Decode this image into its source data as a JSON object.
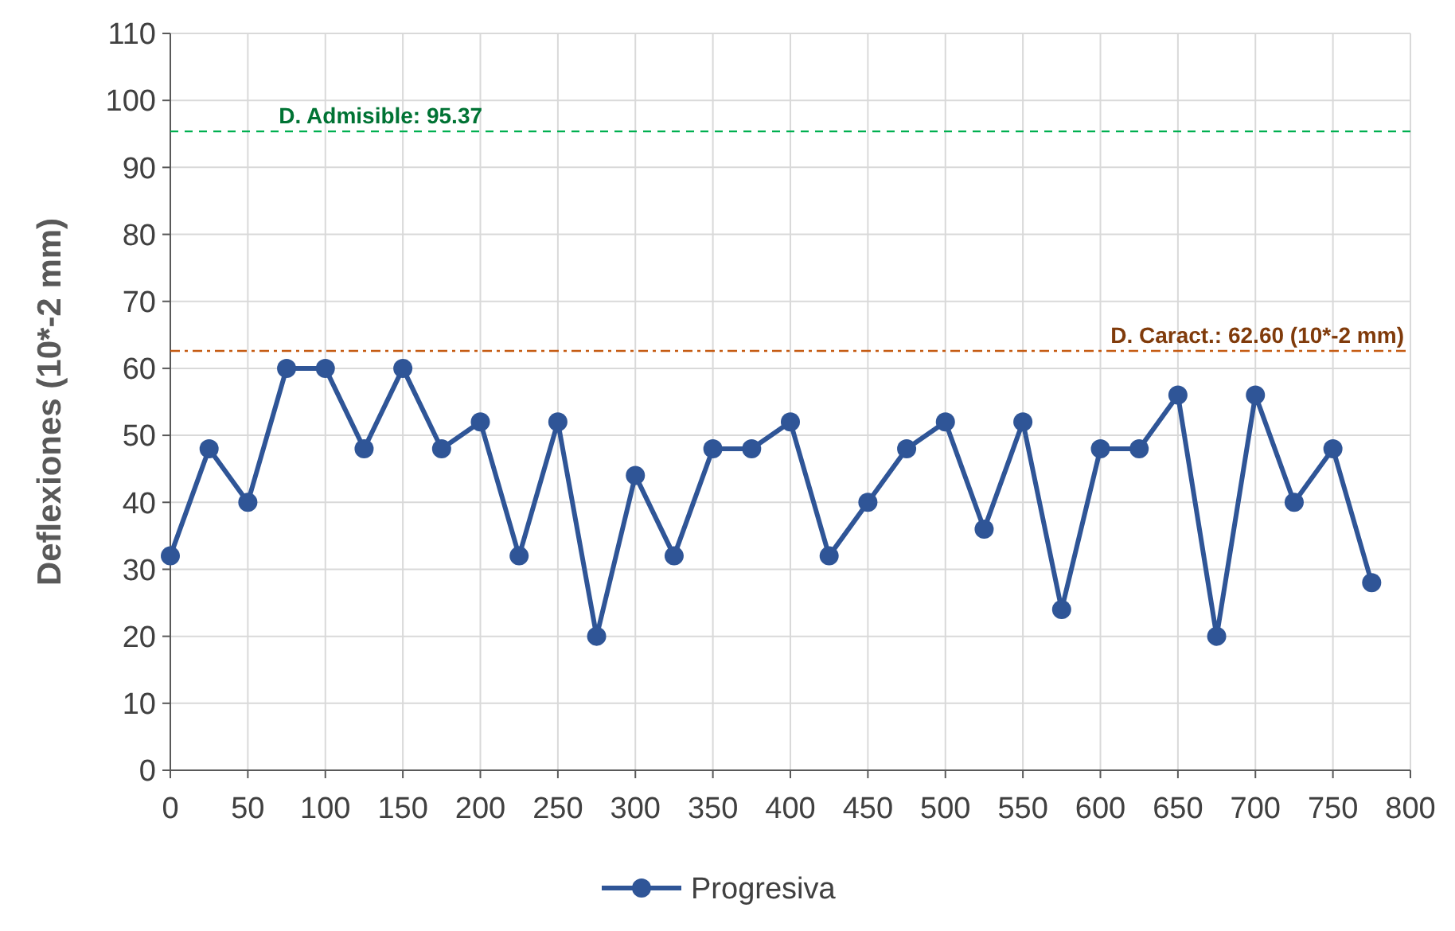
{
  "chart_data": {
    "type": "line",
    "ylabel": "Deflexiones (10*-2 mm)",
    "x": [
      0,
      25,
      50,
      75,
      100,
      125,
      150,
      175,
      200,
      225,
      250,
      275,
      300,
      325,
      350,
      375,
      400,
      425,
      450,
      475,
      500,
      525,
      550,
      575,
      600,
      625,
      650,
      675,
      700,
      725,
      750,
      775
    ],
    "series": [
      {
        "name": "Progresiva",
        "color": "#2f5597",
        "values": [
          32,
          48,
          40,
          60,
          60,
          48,
          60,
          48,
          52,
          32,
          52,
          20,
          44,
          32,
          48,
          48,
          52,
          32,
          40,
          48,
          52,
          36,
          52,
          24,
          48,
          48,
          56,
          20,
          56,
          40,
          48,
          28
        ]
      }
    ],
    "xlim": [
      0,
      800
    ],
    "xticks": [
      0,
      50,
      100,
      150,
      200,
      250,
      300,
      350,
      400,
      450,
      500,
      550,
      600,
      650,
      700,
      750,
      800
    ],
    "ylim": [
      0,
      110
    ],
    "yticks": [
      0,
      10,
      20,
      30,
      40,
      50,
      60,
      70,
      80,
      90,
      100,
      110
    ],
    "grid": true,
    "legend": "bottom",
    "marker": "circle",
    "line_style": "solid",
    "ref_lines": [
      {
        "axis": "y",
        "value": 95.37,
        "label": "D. Admisible: 95.37",
        "color": "#00b050",
        "line_style": "dashed"
      },
      {
        "axis": "y",
        "value": 62.6,
        "label": "D. Caract.: 62.60 (10*-2 mm)",
        "color": "#c55a11",
        "line_style": "dashdot"
      }
    ]
  }
}
